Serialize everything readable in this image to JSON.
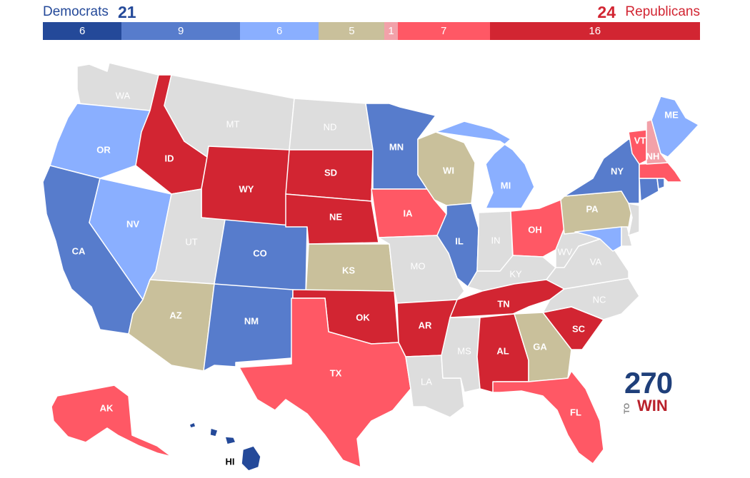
{
  "header": {
    "dem_label": "Democrats",
    "dem_total": "21",
    "rep_total": "24",
    "rep_label": "Republicans"
  },
  "colors": {
    "safe_d": "#244999",
    "likely_d": "#577CCC",
    "lean_d": "#8AAFFF",
    "tossup": "#C9C09B",
    "tilt_r": "#F2A1A9",
    "lean_r": "#FF5865",
    "likely_r": "#D22532",
    "safe_r": "#B4202D",
    "none": "#DDDDDD"
  },
  "bar": [
    {
      "label": "6",
      "value": 6,
      "color": "#244999"
    },
    {
      "label": "9",
      "value": 9,
      "color": "#577CCC"
    },
    {
      "label": "6",
      "value": 6,
      "color": "#8AAFFF"
    },
    {
      "label": "5",
      "value": 5,
      "color": "#C9C09B"
    },
    {
      "label": "1",
      "value": 1,
      "color": "#F2A1A9"
    },
    {
      "label": "7",
      "value": 7,
      "color": "#FF5865"
    },
    {
      "label": "16",
      "value": 16,
      "color": "#D22532"
    }
  ],
  "states": {
    "WA": "none",
    "OR": "lean_d",
    "CA": "likely_d",
    "NV": "lean_d",
    "ID": "likely_r",
    "MT": "none",
    "WY": "likely_r",
    "UT": "none",
    "AZ": "tossup",
    "CO": "likely_d",
    "NM": "likely_d",
    "ND": "none",
    "SD": "likely_r",
    "NE": "likely_r",
    "KS": "tossup",
    "OK": "likely_r",
    "TX": "lean_r",
    "MN": "likely_d",
    "IA": "lean_r",
    "MO": "none",
    "AR": "likely_r",
    "LA": "none",
    "WI": "tossup",
    "IL": "likely_d",
    "MI": "lean_d",
    "IN": "none",
    "OH": "lean_r",
    "KY": "none",
    "TN": "likely_r",
    "MS": "none",
    "AL": "likely_r",
    "GA": "tossup",
    "FL": "lean_r",
    "SC": "likely_r",
    "NC": "none",
    "VA": "none",
    "WV": "none",
    "PA": "tossup",
    "NY": "likely_d",
    "ME": "lean_d",
    "VT": "lean_r",
    "NH": "tilt_r",
    "MA": "lean_r",
    "CT": "likely_d",
    "RI": "likely_d",
    "NJ": "none",
    "DE": "none",
    "MD": "lean_d",
    "AK": "lean_r",
    "HI": "safe_d"
  },
  "labels": {
    "WA": "WA",
    "OR": "OR",
    "CA": "CA",
    "NV": "NV",
    "ID": "ID",
    "MT": "MT",
    "WY": "WY",
    "UT": "UT",
    "AZ": "AZ",
    "CO": "CO",
    "NM": "NM",
    "ND": "ND",
    "SD": "SD",
    "NE": "NE",
    "KS": "KS",
    "OK": "OK",
    "TX": "TX",
    "MN": "MN",
    "IA": "IA",
    "MO": "MO",
    "AR": "AR",
    "LA": "LA",
    "WI": "WI",
    "IL": "IL",
    "MI": "MI",
    "IN": "IN",
    "OH": "OH",
    "KY": "KY",
    "TN": "TN",
    "MS": "MS",
    "AL": "AL",
    "GA": "GA",
    "FL": "FL",
    "SC": "SC",
    "NC": "NC",
    "VA": "VA",
    "WV": "WV",
    "PA": "PA",
    "NY": "NY",
    "ME": "ME",
    "VT": "VT",
    "NH": "NH",
    "AK": "AK",
    "HI": "HI"
  },
  "logo": {
    "number": "270",
    "to": "TO",
    "win": "WIN"
  }
}
